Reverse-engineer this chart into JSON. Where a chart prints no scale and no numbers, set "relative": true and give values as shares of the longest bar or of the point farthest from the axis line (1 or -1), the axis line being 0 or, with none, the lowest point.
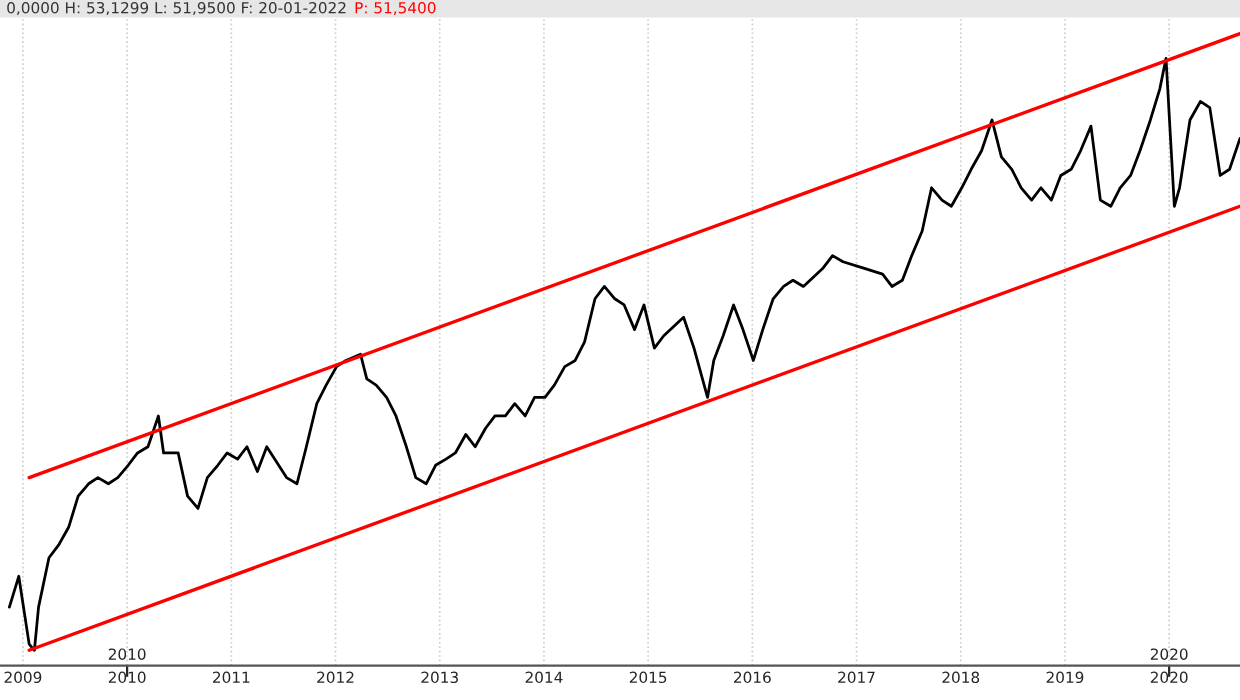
{
  "chart_data": {
    "type": "line",
    "relative": true,
    "grid": "x",
    "annotations": [
      "0,0000 H: 53,1299 L: 51,9500 F: 20-01-2022",
      "P: 51,5400"
    ],
    "xlim": [
      2008.78,
      2020.68
    ],
    "xticks": [
      2009,
      2010,
      2011,
      2012,
      2013,
      2014,
      2015,
      2016,
      2017,
      2018,
      2019,
      2020
    ],
    "x2lim": [
      2008.78,
      2020.68
    ],
    "x2ticks": [
      2010,
      2020
    ],
    "series": [
      {
        "color": "#000000",
        "x": [
          2008.87,
          2008.96,
          2009.06,
          2009.11,
          2009.15,
          2009.25,
          2009.34,
          2009.44,
          2009.53,
          2009.63,
          2009.72,
          2009.82,
          2009.91,
          2010.01,
          2010.1,
          2010.2,
          2010.3,
          2010.35,
          2010.49,
          2010.58,
          2010.68,
          2010.77,
          2010.87,
          2010.96,
          2011.06,
          2011.15,
          2011.25,
          2011.34,
          2011.53,
          2011.63,
          2011.72,
          2011.82,
          2011.91,
          2012.01,
          2012.1,
          2012.24,
          2012.3,
          2012.39,
          2012.49,
          2012.58,
          2012.68,
          2012.77,
          2012.87,
          2012.96,
          2013.06,
          2013.15,
          2013.25,
          2013.34,
          2013.44,
          2013.53,
          2013.63,
          2013.72,
          2013.82,
          2013.91,
          2014.01,
          2014.1,
          2014.2,
          2014.3,
          2014.39,
          2014.49,
          2014.58,
          2014.68,
          2014.77,
          2014.87,
          2014.96,
          2015.06,
          2015.15,
          2015.34,
          2015.44,
          2015.57,
          2015.63,
          2015.72,
          2015.82,
          2015.91,
          2016.01,
          2016.1,
          2016.2,
          2016.3,
          2016.39,
          2016.49,
          2016.68,
          2016.77,
          2016.87,
          2017.06,
          2017.25,
          2017.34,
          2017.44,
          2017.53,
          2017.63,
          2017.72,
          2017.82,
          2017.91,
          2018.01,
          2018.1,
          2018.2,
          2018.3,
          2018.39,
          2018.49,
          2018.58,
          2018.68,
          2018.77,
          2018.87,
          2018.96,
          2019.06,
          2019.15,
          2019.25,
          2019.34,
          2019.44,
          2019.53,
          2019.63,
          2019.72,
          2019.82,
          2019.91,
          2019.97,
          2020.05,
          2020.1,
          2020.2,
          2020.3,
          2020.39,
          2020.49,
          2020.58,
          2020.68
        ],
        "values": [
          0.07,
          0.12,
          0.01,
          0,
          0.07,
          0.15,
          0.17,
          0.2,
          0.25,
          0.27,
          0.28,
          0.27,
          0.28,
          0.3,
          0.32,
          0.33,
          0.38,
          0.32,
          0.32,
          0.25,
          0.23,
          0.28,
          0.3,
          0.32,
          0.31,
          0.33,
          0.29,
          0.33,
          0.28,
          0.27,
          0.33,
          0.4,
          0.43,
          0.46,
          0.47,
          0.48,
          0.44,
          0.43,
          0.41,
          0.38,
          0.33,
          0.28,
          0.27,
          0.3,
          0.31,
          0.32,
          0.35,
          0.33,
          0.36,
          0.38,
          0.38,
          0.4,
          0.38,
          0.41,
          0.41,
          0.43,
          0.46,
          0.47,
          0.5,
          0.57,
          0.59,
          0.57,
          0.56,
          0.52,
          0.56,
          0.49,
          0.51,
          0.54,
          0.49,
          0.41,
          0.47,
          0.51,
          0.56,
          0.52,
          0.47,
          0.52,
          0.57,
          0.59,
          0.6,
          0.59,
          0.62,
          0.64,
          0.63,
          0.62,
          0.61,
          0.59,
          0.6,
          0.64,
          0.68,
          0.75,
          0.73,
          0.72,
          0.75,
          0.78,
          0.81,
          0.86,
          0.8,
          0.78,
          0.75,
          0.73,
          0.75,
          0.73,
          0.77,
          0.78,
          0.81,
          0.85,
          0.73,
          0.72,
          0.75,
          0.77,
          0.81,
          0.86,
          0.91,
          0.96,
          0.72,
          0.75,
          0.86,
          0.89,
          0.88,
          0.77,
          0.78,
          0.83
        ]
      },
      {
        "color": "#ff0000",
        "x": [
          2009.06,
          2020.68
        ],
        "values": [
          0.28,
          1.0
        ]
      },
      {
        "color": "#ff0000",
        "x": [
          2009.06,
          2020.68
        ],
        "values": [
          0,
          0.72
        ]
      }
    ]
  }
}
